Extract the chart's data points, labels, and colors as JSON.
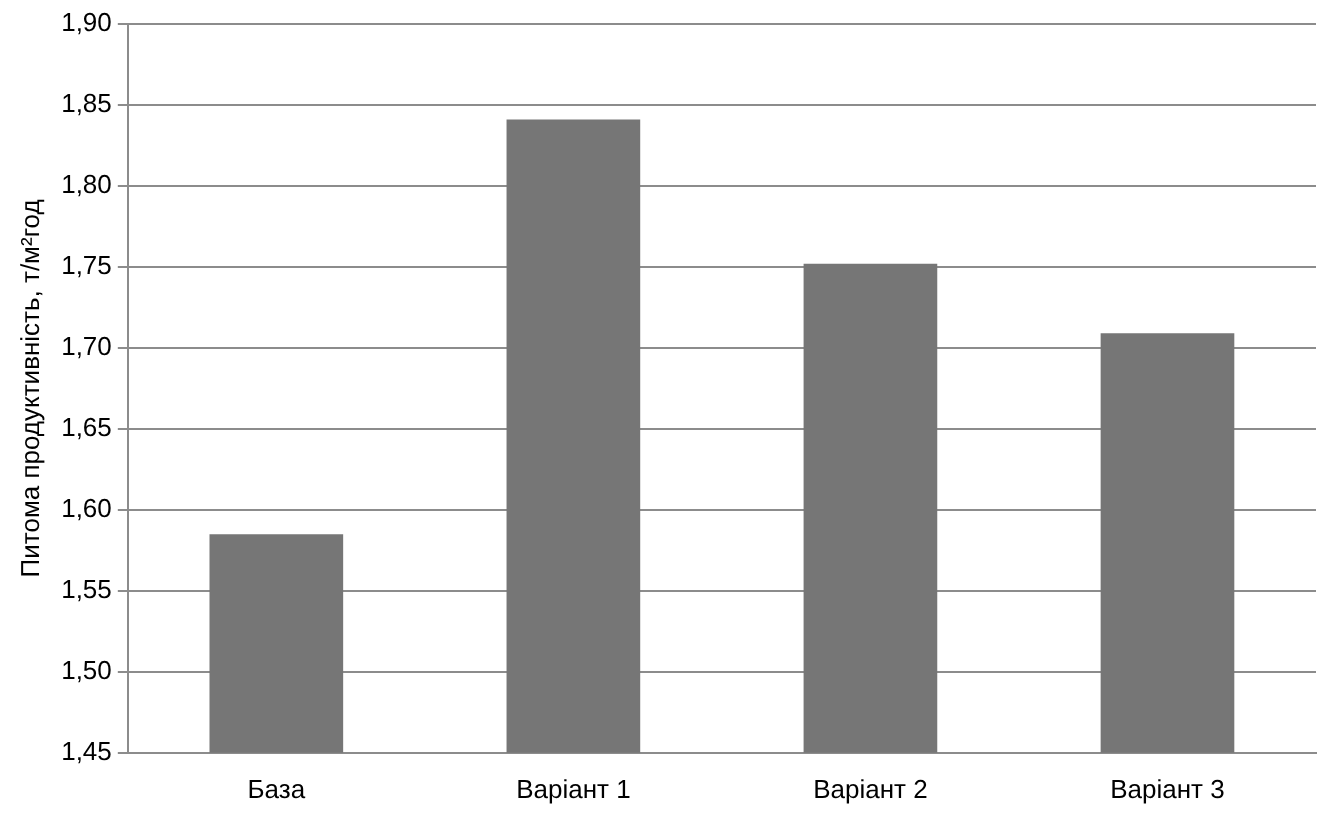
{
  "chart_data": {
    "type": "bar",
    "ylabel": "Питома продуктивність, т/м²год",
    "categories": [
      "База",
      "Варіант 1",
      "Варіант 2",
      "Варіант 3"
    ],
    "values": [
      1.585,
      1.841,
      1.752,
      1.709
    ],
    "color": "#767676",
    "ylim": [
      1.45,
      1.9
    ],
    "yticks": [
      {
        "value": 1.45,
        "label": "1,45"
      },
      {
        "value": 1.5,
        "label": "1,50"
      },
      {
        "value": 1.55,
        "label": "1,55"
      },
      {
        "value": 1.6,
        "label": "1,60"
      },
      {
        "value": 1.65,
        "label": "1,65"
      },
      {
        "value": 1.7,
        "label": "1,70"
      },
      {
        "value": 1.75,
        "label": "1,75"
      },
      {
        "value": 1.8,
        "label": "1,80"
      },
      {
        "value": 1.85,
        "label": "1,85"
      },
      {
        "value": 1.9,
        "label": "1,90"
      }
    ],
    "grid": "y",
    "legend": false
  }
}
